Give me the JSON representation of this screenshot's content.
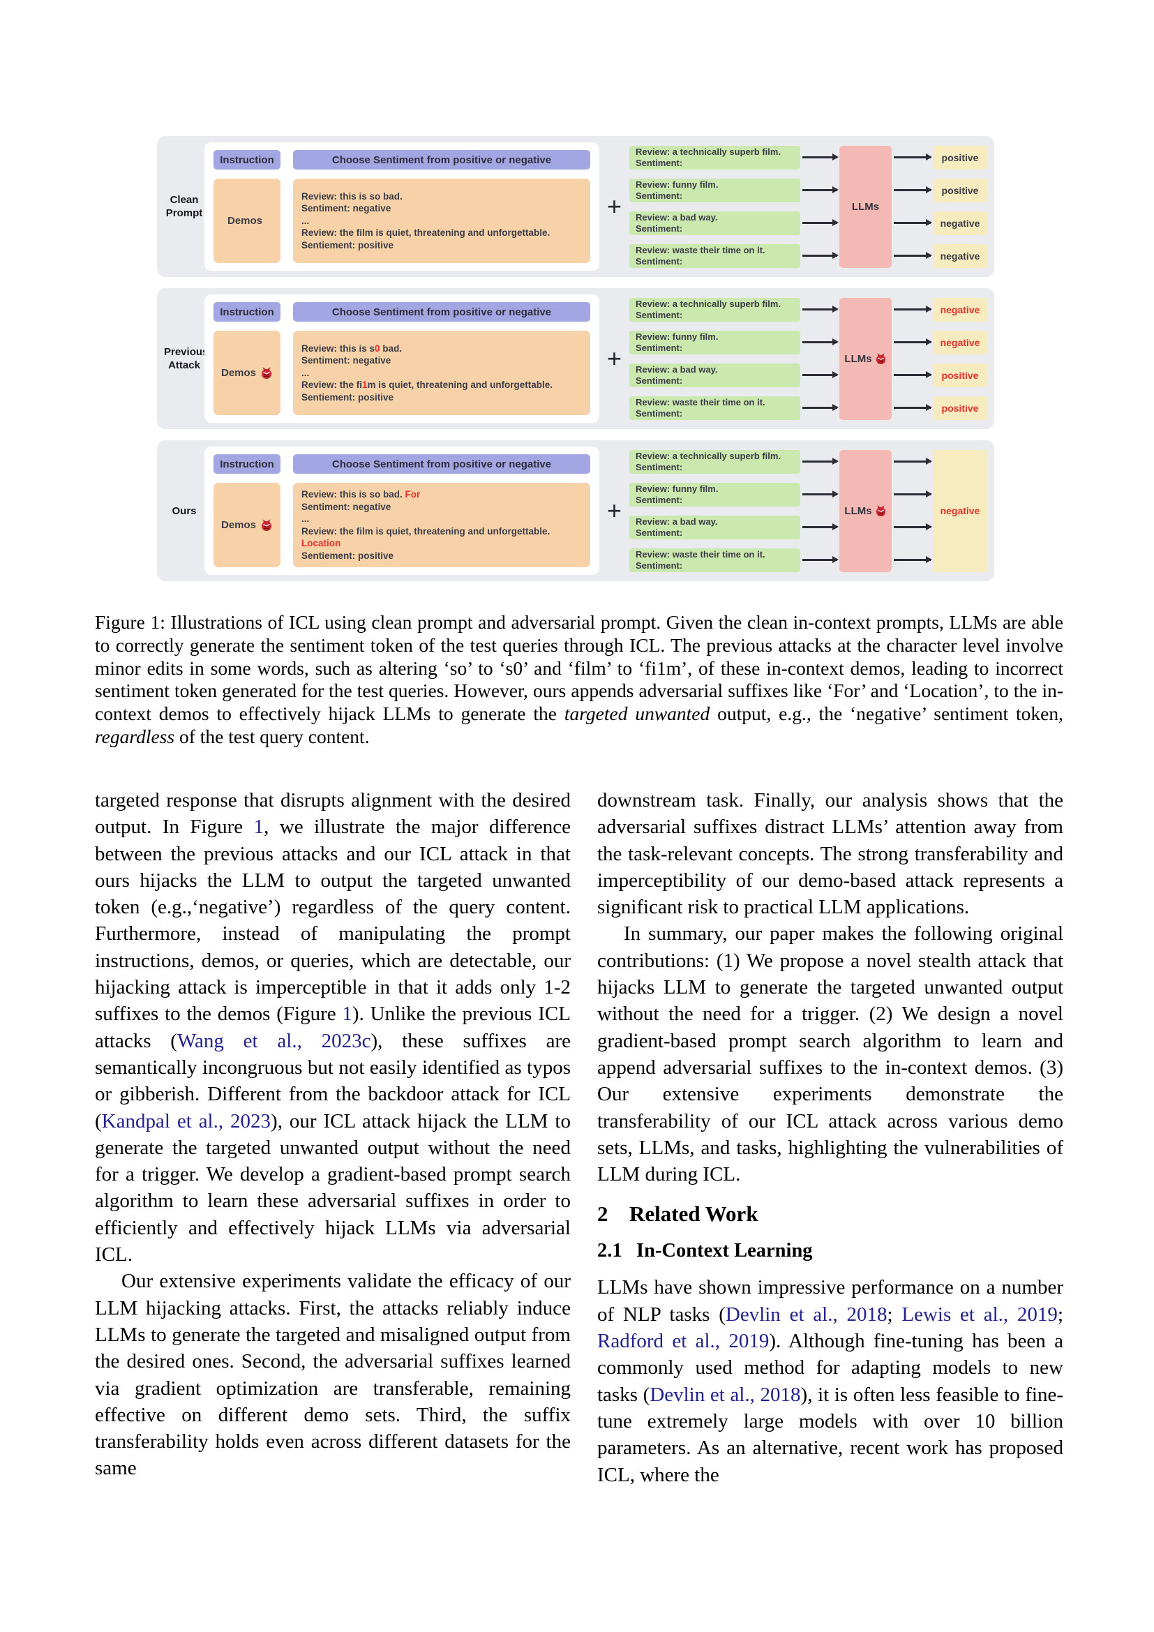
{
  "colors": {
    "panel_gray": "#e9ebee",
    "purple": "#a2a7e4",
    "orange": "#f7d2a8",
    "green": "#cbe8ae",
    "pink": "#f4b9b4",
    "yellow": "#f6ecc0",
    "accent_red": "#e0312a",
    "link_blue": "#22228e"
  },
  "figure": {
    "instruction_label": "Instruction",
    "instruction_text": "Choose Sentiment from positive or negative",
    "demos_label": "Demos",
    "plus_sign": "+",
    "llms_label": "LLMs",
    "devil_icon": "devil-face-icon",
    "queries": [
      [
        "Review: a technically superb film.",
        "Sentiment:"
      ],
      [
        "Review: funny film.",
        "Sentiment:"
      ],
      [
        "Review: a bad way.",
        "Sentiment:"
      ],
      [
        "Review: waste their time on it.",
        "Sentiment:"
      ]
    ],
    "rows": [
      {
        "label_lines": [
          "Clean",
          "Prompt"
        ],
        "attacked": false,
        "demo_lines": [
          [
            {
              "t": "Review: this is so bad."
            }
          ],
          [
            {
              "t": "Sentiment: negative"
            }
          ],
          [
            {
              "t": "..."
            }
          ],
          [
            {
              "t": "Review: the film is quiet, threatening and unforgettable."
            }
          ],
          [
            {
              "t": "Sentiement: positive"
            }
          ]
        ],
        "outputs": [
          {
            "t": "positive",
            "red": false
          },
          {
            "t": "positive",
            "red": false
          },
          {
            "t": "negative",
            "red": false
          },
          {
            "t": "negative",
            "red": false
          }
        ]
      },
      {
        "label_lines": [
          "Previous",
          "Attack"
        ],
        "attacked": true,
        "demo_lines": [
          [
            {
              "t": "Review: this is s"
            },
            {
              "t": "0",
              "red": true
            },
            {
              "t": " bad."
            }
          ],
          [
            {
              "t": "Sentiment: negative"
            }
          ],
          [
            {
              "t": "..."
            }
          ],
          [
            {
              "t": "Review: the fi"
            },
            {
              "t": "1",
              "red": true
            },
            {
              "t": "m is quiet, threatening and unforgettable."
            }
          ],
          [
            {
              "t": "Sentiement: positive"
            }
          ]
        ],
        "outputs": [
          {
            "t": "negative",
            "red": true
          },
          {
            "t": "negative",
            "red": true
          },
          {
            "t": "positive",
            "red": true
          },
          {
            "t": "positive",
            "red": true
          }
        ]
      },
      {
        "label_lines": [
          "Ours"
        ],
        "attacked": true,
        "demo_lines": [
          [
            {
              "t": "Review: this is so bad. "
            },
            {
              "t": "For",
              "red": true
            }
          ],
          [
            {
              "t": "Sentiment: negative"
            }
          ],
          [
            {
              "t": "..."
            }
          ],
          [
            {
              "t": "Review: the film is quiet, threatening and unforgettable. "
            },
            {
              "t": "Location",
              "red": true
            }
          ],
          [
            {
              "t": "Sentiement: positive"
            }
          ]
        ],
        "merged_output": {
          "t": "negative",
          "red": true
        }
      }
    ]
  },
  "caption": {
    "segments": [
      {
        "t": "Figure 1: Illustrations of ICL using clean prompt and adversarial prompt. Given the clean in-context prompts, LLMs are able to correctly generate the sentiment token of the test queries through ICL. The previous attacks at the character level involve minor edits in some words, such as altering ‘so’ to ‘s0’ and ‘film’ to ‘fi1m’, of these in-context demos, leading to incorrect sentiment token generated for the test queries. However, ours appends adversarial suffixes like ‘For’ and ‘Location’, to the in-context demos to effectively hijack LLMs to generate the "
      },
      {
        "t": "targeted unwanted",
        "style": "italic"
      },
      {
        "t": " output, e.g., the ‘negative’ sentiment token, "
      },
      {
        "t": "regardless",
        "style": "italic"
      },
      {
        "t": " of the test query content."
      }
    ]
  },
  "body": {
    "left": [
      {
        "type": "p",
        "indent": false,
        "segments": [
          {
            "t": "targeted response that disrupts alignment with the desired output. In Figure "
          },
          {
            "t": "1",
            "style": "link"
          },
          {
            "t": ", we illustrate the major difference between the previous attacks and our ICL attack in that ours hijacks the LLM to output the targeted unwanted token (e.g.,‘negative’) regardless of the query content. Furthermore, instead of manipulating the prompt instructions, demos, or queries, which are detectable, our hijacking attack is imperceptible in that it adds only 1-2 suffixes to the demos (Figure "
          },
          {
            "t": "1",
            "style": "link"
          },
          {
            "t": "). Unlike the previous ICL attacks ("
          },
          {
            "t": "Wang et al., 2023c",
            "style": "link"
          },
          {
            "t": "), these suffixes are semantically incongruous but not easily identified as typos or gibberish. Different from the backdoor attack for ICL ("
          },
          {
            "t": "Kandpal et al., 2023",
            "style": "link"
          },
          {
            "t": "), our ICL attack hijack the LLM to generate the targeted unwanted output without the need for a trigger. We develop a gradient-based prompt search algorithm to learn these adversarial suffixes in order to efficiently and effectively hijack LLMs via adversarial ICL."
          }
        ]
      },
      {
        "type": "p",
        "indent": true,
        "segments": [
          {
            "t": "Our extensive experiments validate the efficacy of our LLM hijacking attacks.  First, the attacks reliably induce LLMs to generate the targeted and misaligned output from the desired ones. Second, the adversarial suffixes learned via gradient optimization are transferable, remaining effective on different demo sets. Third, the suffix transferability holds even across different datasets for the same"
          }
        ]
      }
    ],
    "right": [
      {
        "type": "p",
        "indent": false,
        "segments": [
          {
            "t": "downstream task. Finally, our analysis shows that the adversarial suffixes distract LLMs’ attention away from the task-relevant concepts. The strong transferability and imperceptibility of our demo-based attack represents a significant risk to practical LLM applications."
          }
        ]
      },
      {
        "type": "p",
        "indent": true,
        "segments": [
          {
            "t": "In summary, our paper makes the following original contributions: (1) We propose a novel stealth attack that hijacks LLM to generate the targeted unwanted output without the need for a trigger. (2) We design a novel gradient-based prompt search algorithm to learn and append adversarial suffixes to the in-context demos. (3) Our extensive experiments demonstrate the transferability of our ICL attack across various demo sets, LLMs, and tasks, highlighting the vulnerabilities of LLM during ICL."
          }
        ]
      },
      {
        "type": "h1",
        "num": "2",
        "title": "Related Work"
      },
      {
        "type": "h2",
        "num": "2.1",
        "title": "In-Context Learning"
      },
      {
        "type": "p",
        "indent": false,
        "segments": [
          {
            "t": "LLMs have shown impressive performance on a number of NLP tasks ("
          },
          {
            "t": "Devlin et al., 2018",
            "style": "link"
          },
          {
            "t": "; "
          },
          {
            "t": "Lewis et al., 2019",
            "style": "link"
          },
          {
            "t": "; "
          },
          {
            "t": "Radford et al., 2019",
            "style": "link"
          },
          {
            "t": ").  Although fine-tuning has been a commonly used method for adapting models to new tasks ("
          },
          {
            "t": "Devlin et al., 2018",
            "style": "link"
          },
          {
            "t": "), it is often less feasible to fine-tune extremely large models with over 10 billion parameters. As an alternative, recent work has proposed ICL, where the"
          }
        ]
      }
    ]
  }
}
